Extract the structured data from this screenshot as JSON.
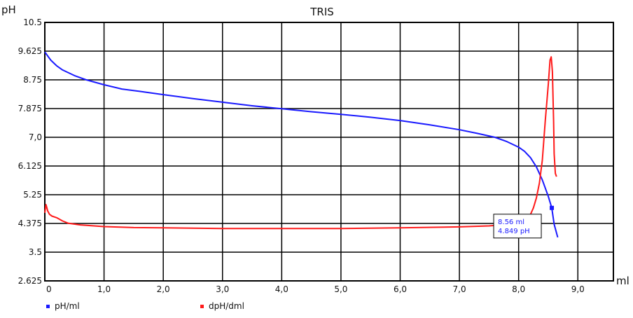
{
  "chart_data": {
    "type": "line",
    "title": "TRIS",
    "xlabel": "ml",
    "ylabel": "pH",
    "xlim": [
      0,
      9.6
    ],
    "ylim": [
      2.625,
      10.5
    ],
    "x_ticks": [
      0,
      1,
      2,
      3,
      4,
      5,
      6,
      7,
      8,
      9
    ],
    "x_tick_labels": [
      "0",
      "1,0",
      "2,0",
      "3,0",
      "4,0",
      "5,0",
      "6,0",
      "7,0",
      "8,0",
      "9,0"
    ],
    "y_ticks": [
      10.5,
      9.625,
      8.75,
      7.875,
      7.0,
      6.125,
      5.25,
      4.375,
      3.5,
      2.625
    ],
    "y_tick_labels": [
      "10.5",
      "9.625",
      "8.75",
      "7.875",
      "7,0",
      "6.125",
      "5.25",
      "4.375",
      "3.5",
      "2.625"
    ],
    "grid": true,
    "legend_position": "bottom-left",
    "series": [
      {
        "name": "pH/ml",
        "color": "#1a1aff",
        "x": [
          0,
          0.1,
          0.2,
          0.3,
          0.5,
          0.7,
          1.0,
          1.3,
          1.6,
          2.0,
          2.5,
          3.0,
          3.5,
          4.0,
          4.5,
          5.0,
          5.5,
          6.0,
          6.5,
          7.0,
          7.3,
          7.6,
          7.8,
          8.0,
          8.1,
          8.2,
          8.3,
          8.4,
          8.5,
          8.56,
          8.6,
          8.66
        ],
        "y": [
          9.6,
          9.35,
          9.18,
          9.05,
          8.88,
          8.75,
          8.6,
          8.47,
          8.4,
          8.3,
          8.18,
          8.07,
          7.96,
          7.87,
          7.78,
          7.7,
          7.61,
          7.51,
          7.38,
          7.23,
          7.12,
          7.0,
          6.87,
          6.7,
          6.57,
          6.38,
          6.1,
          5.7,
          5.2,
          4.849,
          4.35,
          3.95
        ]
      },
      {
        "name": "dpH/dml",
        "color": "#ff1a1a",
        "x": [
          0,
          0.02,
          0.05,
          0.08,
          0.12,
          0.2,
          0.3,
          0.4,
          0.6,
          1.0,
          1.5,
          2.0,
          3.0,
          4.0,
          5.0,
          6.0,
          7.0,
          7.5,
          7.8,
          8.0,
          8.1,
          8.2,
          8.25,
          8.3,
          8.35,
          8.4,
          8.45,
          8.5,
          8.53,
          8.55,
          8.57,
          8.59,
          8.6,
          8.62,
          8.64
        ],
        "y": [
          4.7,
          4.95,
          4.75,
          4.65,
          4.6,
          4.55,
          4.45,
          4.38,
          4.33,
          4.28,
          4.25,
          4.24,
          4.22,
          4.22,
          4.22,
          4.24,
          4.27,
          4.3,
          4.34,
          4.4,
          4.5,
          4.65,
          4.85,
          5.15,
          5.6,
          6.3,
          7.5,
          8.6,
          9.35,
          9.45,
          9.0,
          7.5,
          6.5,
          5.9,
          5.8
        ]
      }
    ],
    "annotation": {
      "marker_x": 8.56,
      "marker_y": 4.849,
      "line1": "8.56 ml",
      "line2": "4.849 pH"
    }
  }
}
